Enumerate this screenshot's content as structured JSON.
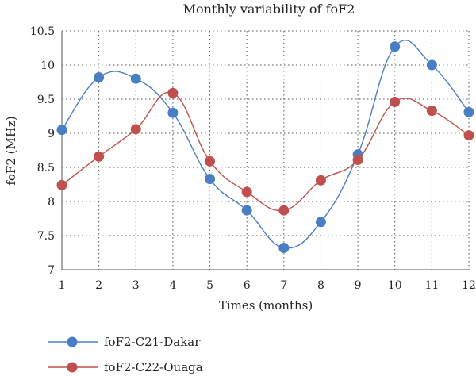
{
  "chart_data": {
    "type": "line",
    "title": "Monthly variability of foF2",
    "xlabel": "Times (months)",
    "ylabel": "foF2 (MHz)",
    "x": [
      1,
      2,
      3,
      4,
      5,
      6,
      7,
      8,
      9,
      10,
      11,
      12
    ],
    "xlim": [
      1,
      12
    ],
    "ylim": [
      7,
      10.5
    ],
    "yticks": [
      7,
      7.5,
      8,
      8.5,
      9,
      9.5,
      10,
      10.5
    ],
    "ytick_labels": [
      "7",
      "7.5",
      "8",
      "8.5",
      "9",
      "9.5",
      "10",
      "10.5"
    ],
    "grid": true,
    "legend_position": "bottom-left",
    "series": [
      {
        "name": "foF2-C21-Dakar",
        "color": "#4a7ec4",
        "values": [
          9.05,
          9.82,
          9.8,
          9.3,
          8.33,
          7.87,
          7.32,
          7.7,
          8.69,
          10.27,
          10.0,
          9.31
        ]
      },
      {
        "name": "foF2-C22-Ouaga",
        "color": "#c0504d",
        "values": [
          8.24,
          8.66,
          9.06,
          9.59,
          8.59,
          8.14,
          7.87,
          8.31,
          8.61,
          9.46,
          9.33,
          8.97
        ]
      }
    ]
  }
}
